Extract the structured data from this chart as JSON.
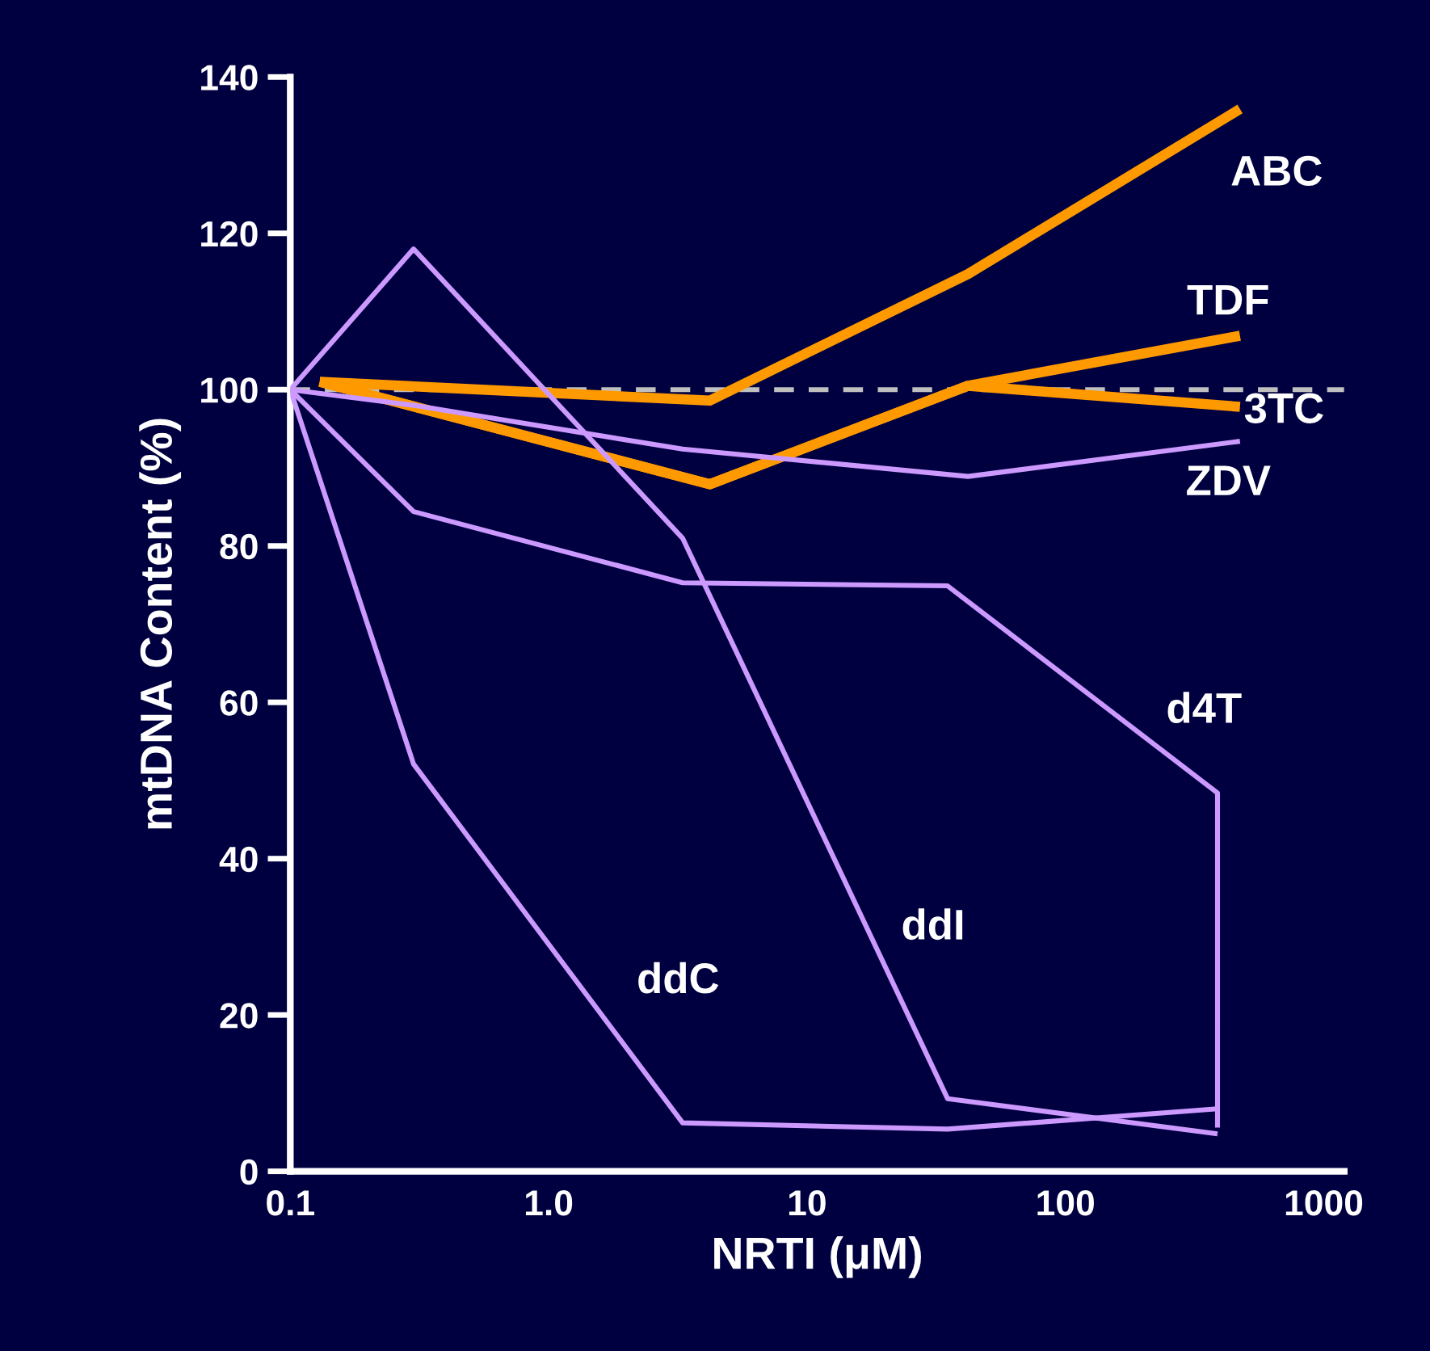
{
  "chart_data": {
    "type": "line",
    "xlabel": "NRTI (μM)",
    "ylabel": "mtDNA Content (%)",
    "log": "x",
    "xlim": [
      0.1,
      1200
    ],
    "xticks": [
      {
        "value": 0.1,
        "label": "0.1"
      },
      {
        "value": 1,
        "label": "1.0"
      },
      10,
      100,
      1000
    ],
    "ylim": [
      0,
      140
    ],
    "yticks": [
      0,
      20,
      40,
      60,
      80,
      100,
      120,
      140
    ],
    "grid": false,
    "legend": false,
    "marker": "none",
    "line_style": "solid",
    "ref_lines": [
      {
        "axis": "y",
        "value": 100,
        "color": "#c0c0c0",
        "line_style": "dashed"
      }
    ],
    "series": [
      {
        "name": "ABC",
        "color": "#ff9900",
        "x": [
          0.13,
          4.2,
          42,
          474
        ],
        "values": [
          101,
          98.6,
          114.8,
          135.9
        ]
      },
      {
        "name": "TDF",
        "color": "#ff9900",
        "x": [
          0.13,
          4.2,
          42,
          474
        ],
        "values": [
          101,
          87.9,
          100.5,
          106.9
        ]
      },
      {
        "name": "3TC",
        "color": "#ff9900",
        "x": [
          0.13,
          4.2,
          42,
          474
        ],
        "values": [
          101,
          87.9,
          100.5,
          97.8
        ]
      },
      {
        "name": "ZDV",
        "color": "#cc99ff",
        "x": [
          0.1,
          0.3,
          3.3,
          42,
          474
        ],
        "values": [
          100,
          98,
          92.4,
          88.9,
          93.4
        ]
      },
      {
        "name": "d4T",
        "color": "#cc99ff",
        "x": [
          0.1,
          0.3,
          3.3,
          35,
          388,
          388
        ],
        "values": [
          100,
          84.4,
          75.3,
          74.9,
          48.4,
          5.6
        ]
      },
      {
        "name": "ddI",
        "color": "#cc99ff",
        "x": [
          0.1,
          0.3,
          3.3,
          35,
          388
        ],
        "values": [
          100,
          118,
          81,
          9.3,
          4.8
        ]
      },
      {
        "name": "ddC",
        "color": "#cc99ff",
        "x": [
          0.1,
          0.3,
          3.3,
          35,
          388
        ],
        "values": [
          100,
          52.1,
          6.2,
          5.4,
          8
        ]
      }
    ]
  }
}
